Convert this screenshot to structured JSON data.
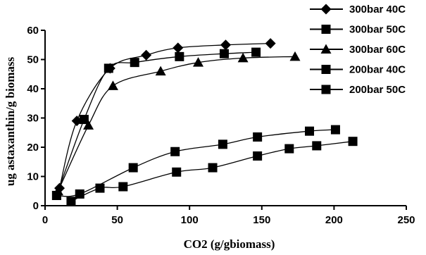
{
  "chart_data": {
    "type": "line",
    "xlabel": "CO2 (g/gbiomass)",
    "ylabel": "ug astaxanthin/g biomass",
    "xlim": [
      0,
      250
    ],
    "ylim": [
      0,
      60
    ],
    "xticks": [
      0,
      50,
      100,
      150,
      200,
      250
    ],
    "yticks": [
      0,
      10,
      20,
      30,
      40,
      50,
      60
    ],
    "grid": false,
    "legend_position": "top-right",
    "series": [
      {
        "name": "300bar 40C",
        "marker": "diamond",
        "x": [
          10,
          22,
          45,
          70,
          92,
          125,
          156
        ],
        "y": [
          6,
          29,
          47,
          51.5,
          54,
          55,
          55.5
        ]
      },
      {
        "name": "300bar 50C",
        "marker": "square",
        "x": [
          8,
          27,
          44,
          62,
          93,
          124,
          146
        ],
        "y": [
          3.5,
          29.5,
          47,
          49,
          51,
          52,
          52.5
        ]
      },
      {
        "name": "300bar 60C",
        "marker": "triangle",
        "x": [
          9,
          30,
          47,
          80,
          106,
          137,
          173
        ],
        "y": [
          5,
          27.5,
          41,
          46,
          49,
          50.5,
          51
        ]
      },
      {
        "name": "200bar 40C",
        "marker": "square",
        "x": [
          8,
          24,
          61,
          90,
          123,
          147,
          183,
          201
        ],
        "y": [
          3.5,
          4,
          13,
          18.5,
          21,
          23.5,
          25.5,
          26
        ]
      },
      {
        "name": "200bar 50C",
        "marker": "square",
        "x": [
          18,
          38,
          54,
          91,
          116,
          147,
          169,
          188,
          213
        ],
        "y": [
          1.5,
          6,
          6.5,
          11.5,
          13,
          17,
          19.5,
          20.5,
          22
        ]
      }
    ]
  }
}
